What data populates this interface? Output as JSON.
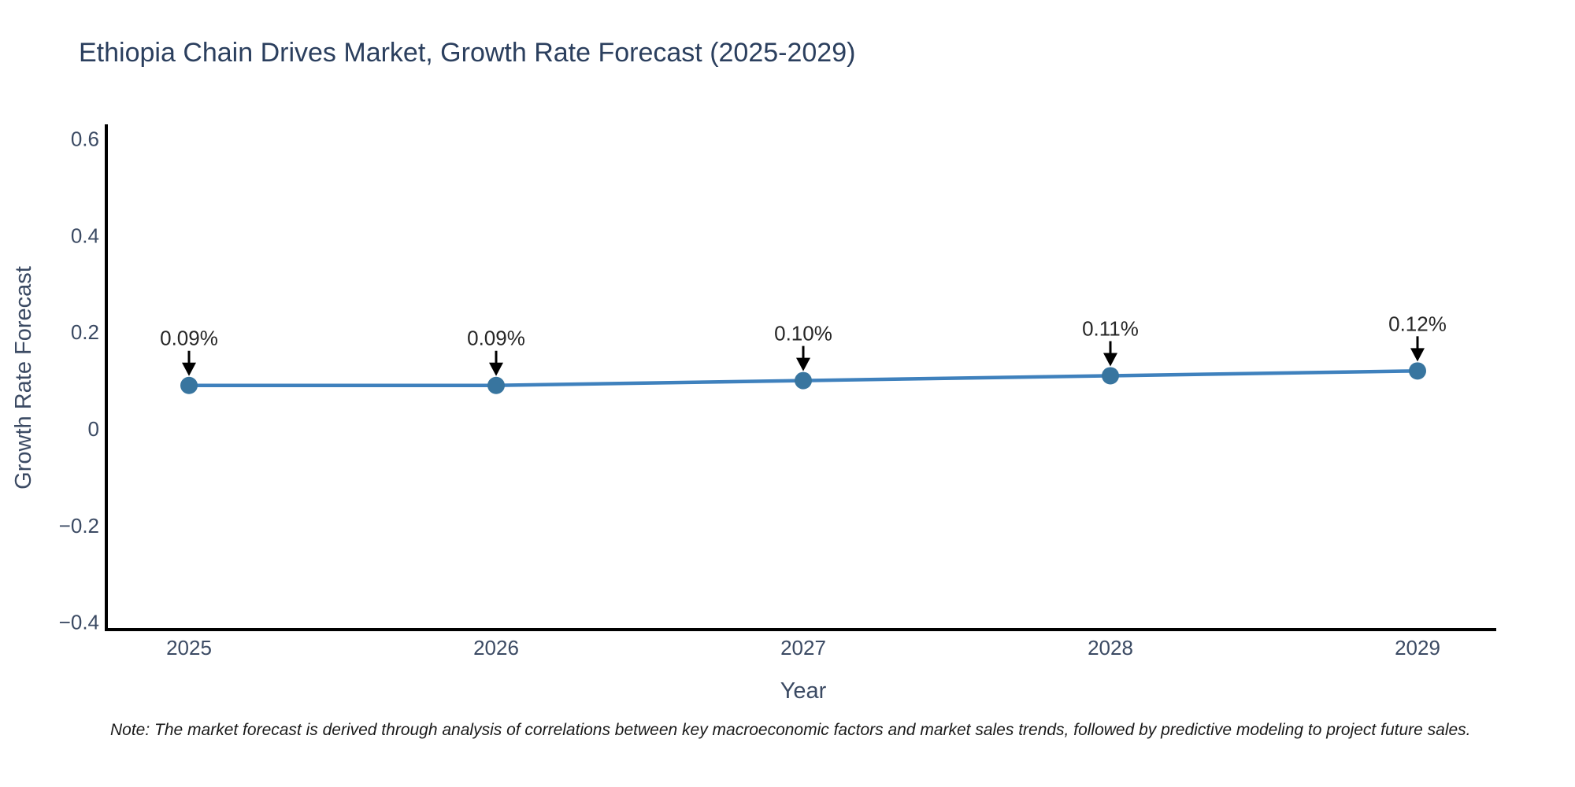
{
  "title": {
    "text": "Ethiopia Chain Drives Market, Growth Rate Forecast (2025-2029)",
    "color": "#2b3f5e"
  },
  "chart_data": {
    "type": "line",
    "x": [
      2025,
      2026,
      2027,
      2028,
      2029
    ],
    "series": [
      {
        "name": "Growth Rate Forecast",
        "values": [
          0.09,
          0.09,
          0.1,
          0.11,
          0.12
        ]
      }
    ],
    "point_labels": [
      "0.09%",
      "0.09%",
      "0.10%",
      "0.11%",
      "0.12%"
    ],
    "xlabel": "Year",
    "ylabel": "Growth Rate Forecast",
    "xtick_labels": [
      "2025",
      "2026",
      "2027",
      "2028",
      "2029"
    ],
    "yticks": {
      "values": [
        0.6,
        0.4,
        0.2,
        0,
        -0.2,
        -0.4
      ],
      "labels": [
        "0.6",
        "0.4",
        "0.2",
        "0",
        "−0.2",
        "−0.4"
      ]
    },
    "ylim": [
      -0.42,
      0.63
    ],
    "grid": false,
    "legend_position": "none",
    "colors": {
      "line": "#3f81bd",
      "marker": "#38759f",
      "axis": "#000000",
      "tick_label": "#3b4a63",
      "axis_title": "#3b4a63",
      "annotation_text": "#262626",
      "annotation_arrow": "#000000"
    }
  },
  "note": {
    "text": "Note: The market forecast is derived through analysis of correlations between key macroeconomic factors and market sales trends, followed by predictive modeling to project future sales."
  }
}
